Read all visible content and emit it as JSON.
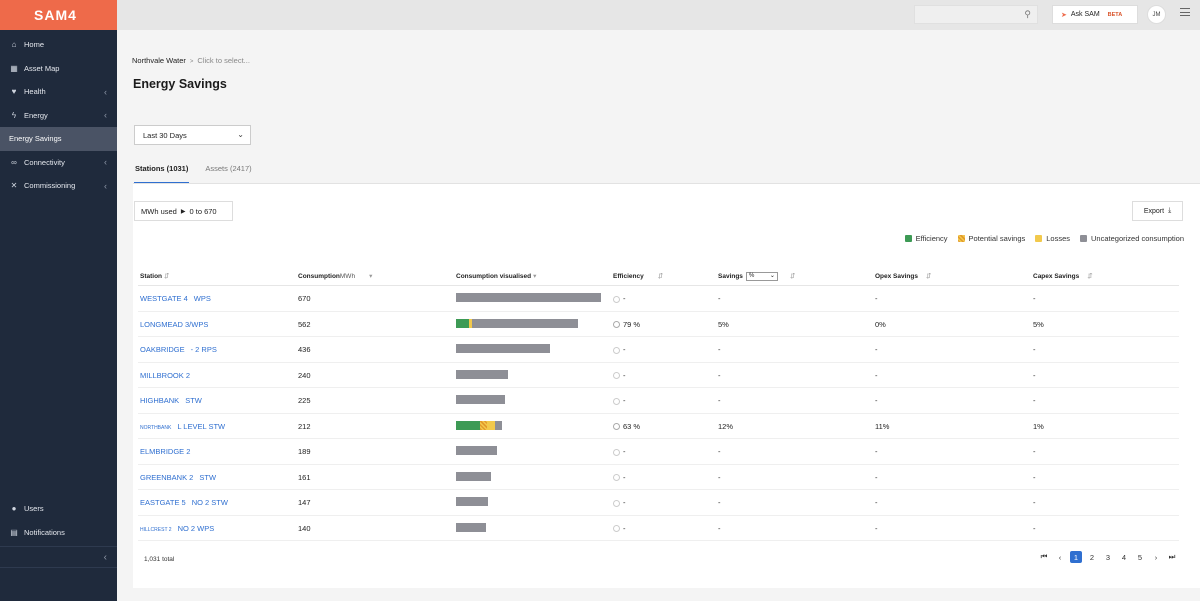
{
  "app": {
    "logo": "SAM4"
  },
  "sidebar": {
    "items": [
      {
        "label": "Home",
        "icon": "home-icon",
        "glyph": "⌂",
        "chevron": false
      },
      {
        "label": "Asset Map",
        "icon": "map-icon",
        "glyph": "▦",
        "chevron": false
      },
      {
        "label": "Health",
        "icon": "heart-icon",
        "glyph": "♥",
        "chevron": true
      },
      {
        "label": "Energy",
        "icon": "bolt-icon",
        "glyph": "ϟ",
        "chevron": true
      },
      {
        "label": "Energy Savings",
        "icon": "",
        "glyph": "",
        "chevron": false,
        "active": true
      },
      {
        "label": "Connectivity",
        "icon": "link-icon",
        "glyph": "∞",
        "chevron": true
      },
      {
        "label": "Commissioning",
        "icon": "tools-icon",
        "glyph": "✕",
        "chevron": true
      }
    ],
    "bottom_items": [
      {
        "label": "Users",
        "icon": "users-icon",
        "glyph": "●"
      },
      {
        "label": "Notifications",
        "icon": "notification-icon",
        "glyph": "▤"
      }
    ],
    "collapse_glyph": "‹"
  },
  "topbar": {
    "search_placeholder": "",
    "ask_label": "Ask SAM",
    "beta_label": "BETA",
    "avatar_initials": "JM"
  },
  "breadcrumb": {
    "root": "Northvale Water",
    "select": "Click to select..."
  },
  "page_title": "Energy Savings",
  "range_select": {
    "value": "Last 30 Days"
  },
  "tabs": [
    {
      "label": "Stations (1031)",
      "active": true
    },
    {
      "label": "Assets (2417)",
      "active": false
    }
  ],
  "filter": {
    "label": "MWh used",
    "range": "0 to 670"
  },
  "export_label": "Export",
  "legend": [
    {
      "label": "Efficiency",
      "color": "#3d9a55"
    },
    {
      "label": "Potential savings",
      "color": "#e39a2c"
    },
    {
      "label": "Losses",
      "color": "#f2c94c"
    },
    {
      "label": "Uncategorized consumption",
      "color": "#8e8f96"
    }
  ],
  "table": {
    "headers": {
      "station": "Station",
      "consumption": "Consumption",
      "consumption_unit": "MWh",
      "visualised": "Consumption visualised",
      "efficiency": "Efficiency",
      "savings": "Savings",
      "savings_unit": "%",
      "opex": "Opex Savings",
      "capex": "Capex Savings"
    },
    "max_consumption": 670,
    "rows": [
      {
        "name": "WESTGATE 4",
        "suffix": "WPS",
        "consumption": "670",
        "value": 670,
        "eff_pct": 0,
        "pot_pct": 0,
        "loss_pct": 0,
        "efficiency": "-",
        "savings": "-",
        "opex": "-",
        "capex": "-"
      },
      {
        "name": "LONGMEAD 3/WPS",
        "suffix": "",
        "consumption": "562",
        "value": 562,
        "eff_pct": 0.11,
        "pot_pct": 0.0,
        "loss_pct": 0.02,
        "efficiency": "79 %",
        "savings": "5%",
        "opex": "0%",
        "capex": "5%"
      },
      {
        "name": "OAKBRIDGE",
        "suffix": "- 2 RPS",
        "consumption": "436",
        "value": 436,
        "eff_pct": 0,
        "pot_pct": 0,
        "loss_pct": 0,
        "efficiency": "-",
        "savings": "-",
        "opex": "-",
        "capex": "-"
      },
      {
        "name": "MILLBROOK 2",
        "suffix": "",
        "consumption": "240",
        "value": 240,
        "eff_pct": 0,
        "pot_pct": 0,
        "loss_pct": 0,
        "efficiency": "-",
        "savings": "-",
        "opex": "-",
        "capex": "-"
      },
      {
        "name": "HIGHBANK",
        "suffix": "STW",
        "consumption": "225",
        "value": 225,
        "eff_pct": 0,
        "pot_pct": 0,
        "loss_pct": 0,
        "efficiency": "-",
        "savings": "-",
        "opex": "-",
        "capex": "-"
      },
      {
        "name": "NORTHBANK",
        "suffix": "L LEVEL STW",
        "small": true,
        "consumption": "212",
        "value": 212,
        "eff_pct": 0.53,
        "pot_pct": 0.15,
        "loss_pct": 0.17,
        "efficiency": "63 %",
        "savings": "12%",
        "opex": "11%",
        "capex": "1%"
      },
      {
        "name": "ELMBRIDGE 2",
        "suffix": "",
        "consumption": "189",
        "value": 189,
        "eff_pct": 0,
        "pot_pct": 0,
        "loss_pct": 0,
        "efficiency": "-",
        "savings": "-",
        "opex": "-",
        "capex": "-"
      },
      {
        "name": "GREENBANK 2",
        "suffix": "STW",
        "consumption": "161",
        "value": 161,
        "eff_pct": 0,
        "pot_pct": 0,
        "loss_pct": 0,
        "efficiency": "-",
        "savings": "-",
        "opex": "-",
        "capex": "-"
      },
      {
        "name": "EASTGATE 5",
        "suffix": "NO 2 STW",
        "consumption": "147",
        "value": 147,
        "eff_pct": 0,
        "pot_pct": 0,
        "loss_pct": 0,
        "efficiency": "-",
        "savings": "-",
        "opex": "-",
        "capex": "-"
      },
      {
        "name": "HILLCREST 2",
        "suffix": "NO 2 WPS",
        "small": true,
        "consumption": "140",
        "value": 140,
        "eff_pct": 0,
        "pot_pct": 0,
        "loss_pct": 0,
        "efficiency": "-",
        "savings": "-",
        "opex": "-",
        "capex": "-"
      }
    ],
    "total": "1,031 total"
  },
  "pager": {
    "first": "⏮",
    "prev": "‹",
    "pages": [
      "1",
      "2",
      "3",
      "4",
      "5"
    ],
    "active": "1",
    "next": "›",
    "last": "⏭"
  }
}
